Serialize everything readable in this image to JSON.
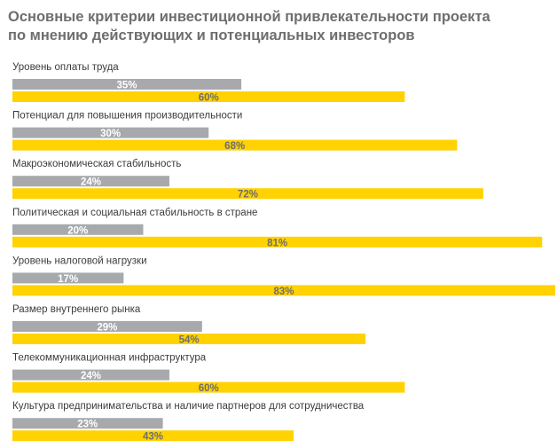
{
  "chart_data": {
    "type": "bar",
    "orientation": "horizontal",
    "title_lines": [
      "Основные критерии инвестиционной привлекательности проекта",
      "по мнению действующих и потенциальных инвесторов"
    ],
    "categories": [
      "Уровень оплаты труда",
      "Потенциал для повышения производительности",
      "Макроэкономическая стабильность",
      "Политическая и социальная стабильность в стране",
      "Уровень налоговой нагрузки",
      "Размер внутреннего рынка",
      "Телекоммуникационная инфраструктура",
      "Культура предпринимательства и наличие партнеров для сотрудничества"
    ],
    "series": [
      {
        "values": [
          35,
          30,
          24,
          20,
          17,
          29,
          24,
          23
        ],
        "labels": [
          "35%",
          "30%",
          "24%",
          "20%",
          "17%",
          "29%",
          "24%",
          "23%"
        ],
        "color": "#a7a9ac",
        "label_color": "#ffffff"
      },
      {
        "values": [
          60,
          68,
          72,
          81,
          83,
          54,
          60,
          43
        ],
        "labels": [
          "60%",
          "68%",
          "72%",
          "81%",
          "83%",
          "54%",
          "60%",
          "43%"
        ],
        "color": "#ffd200",
        "label_color": "#6d6e70"
      }
    ],
    "xlim": [
      0,
      83
    ],
    "grid": false,
    "legend": "none"
  }
}
